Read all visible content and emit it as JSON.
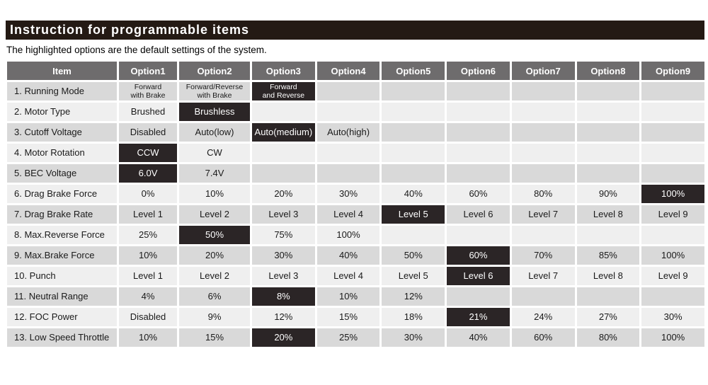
{
  "title": "Instruction for programmable items",
  "subtitle": "The highlighted options are the default settings of the system.",
  "colors": {
    "title_bar": "#241a14",
    "header_bg": "#6e6c6d",
    "row_odd": "#d9d9d9",
    "row_even": "#efefef",
    "highlight": "#2b2526",
    "text": "#1a1a1a"
  },
  "table": {
    "headers": [
      "Item",
      "Option1",
      "Option2",
      "Option3",
      "Option4",
      "Option5",
      "Option6",
      "Option7",
      "Option8",
      "Option9"
    ],
    "rows": [
      {
        "item": "1. Running Mode",
        "small": true,
        "default_index": 2,
        "options": [
          "Forward\nwith Brake",
          "Forward/Reverse\nwith Brake",
          "Forward\nand Reverse",
          "",
          "",
          "",
          "",
          "",
          ""
        ]
      },
      {
        "item": "2. Motor Type",
        "default_index": 1,
        "options": [
          "Brushed",
          "Brushless",
          "",
          "",
          "",
          "",
          "",
          "",
          ""
        ]
      },
      {
        "item": "3. Cutoff Voltage",
        "default_index": 2,
        "options": [
          "Disabled",
          "Auto(low)",
          "Auto(medium)",
          "Auto(high)",
          "",
          "",
          "",
          "",
          ""
        ]
      },
      {
        "item": "4. Motor Rotation",
        "default_index": 0,
        "options": [
          "CCW",
          "CW",
          "",
          "",
          "",
          "",
          "",
          "",
          ""
        ]
      },
      {
        "item": "5. BEC Voltage",
        "default_index": 0,
        "options": [
          "6.0V",
          "7.4V",
          "",
          "",
          "",
          "",
          "",
          "",
          ""
        ]
      },
      {
        "item": "6. Drag Brake Force",
        "default_index": 8,
        "options": [
          "0%",
          "10%",
          "20%",
          "30%",
          "40%",
          "60%",
          "80%",
          "90%",
          "100%"
        ]
      },
      {
        "item": "7. Drag Brake Rate",
        "default_index": 4,
        "options": [
          "Level 1",
          "Level 2",
          "Level 3",
          "Level 4",
          "Level 5",
          "Level 6",
          "Level 7",
          "Level 8",
          "Level 9"
        ]
      },
      {
        "item": "8. Max.Reverse Force",
        "default_index": 1,
        "options": [
          "25%",
          "50%",
          "75%",
          "100%",
          "",
          "",
          "",
          "",
          ""
        ]
      },
      {
        "item": "9. Max.Brake Force",
        "default_index": 5,
        "options": [
          "10%",
          "20%",
          "30%",
          "40%",
          "50%",
          "60%",
          "70%",
          "85%",
          "100%"
        ]
      },
      {
        "item": "10. Punch",
        "default_index": 5,
        "options": [
          "Level 1",
          "Level 2",
          "Level 3",
          "Level 4",
          "Level 5",
          "Level 6",
          "Level 7",
          "Level 8",
          "Level 9"
        ]
      },
      {
        "item": "11. Neutral Range",
        "default_index": 2,
        "options": [
          "4%",
          "6%",
          "8%",
          "10%",
          "12%",
          "",
          "",
          "",
          ""
        ]
      },
      {
        "item": "12. FOC Power",
        "default_index": 5,
        "options": [
          "Disabled",
          "9%",
          "12%",
          "15%",
          "18%",
          "21%",
          "24%",
          "27%",
          "30%"
        ]
      },
      {
        "item": "13. Low Speed Throttle",
        "default_index": 2,
        "options": [
          "10%",
          "15%",
          "20%",
          "25%",
          "30%",
          "40%",
          "60%",
          "80%",
          "100%"
        ]
      }
    ]
  }
}
